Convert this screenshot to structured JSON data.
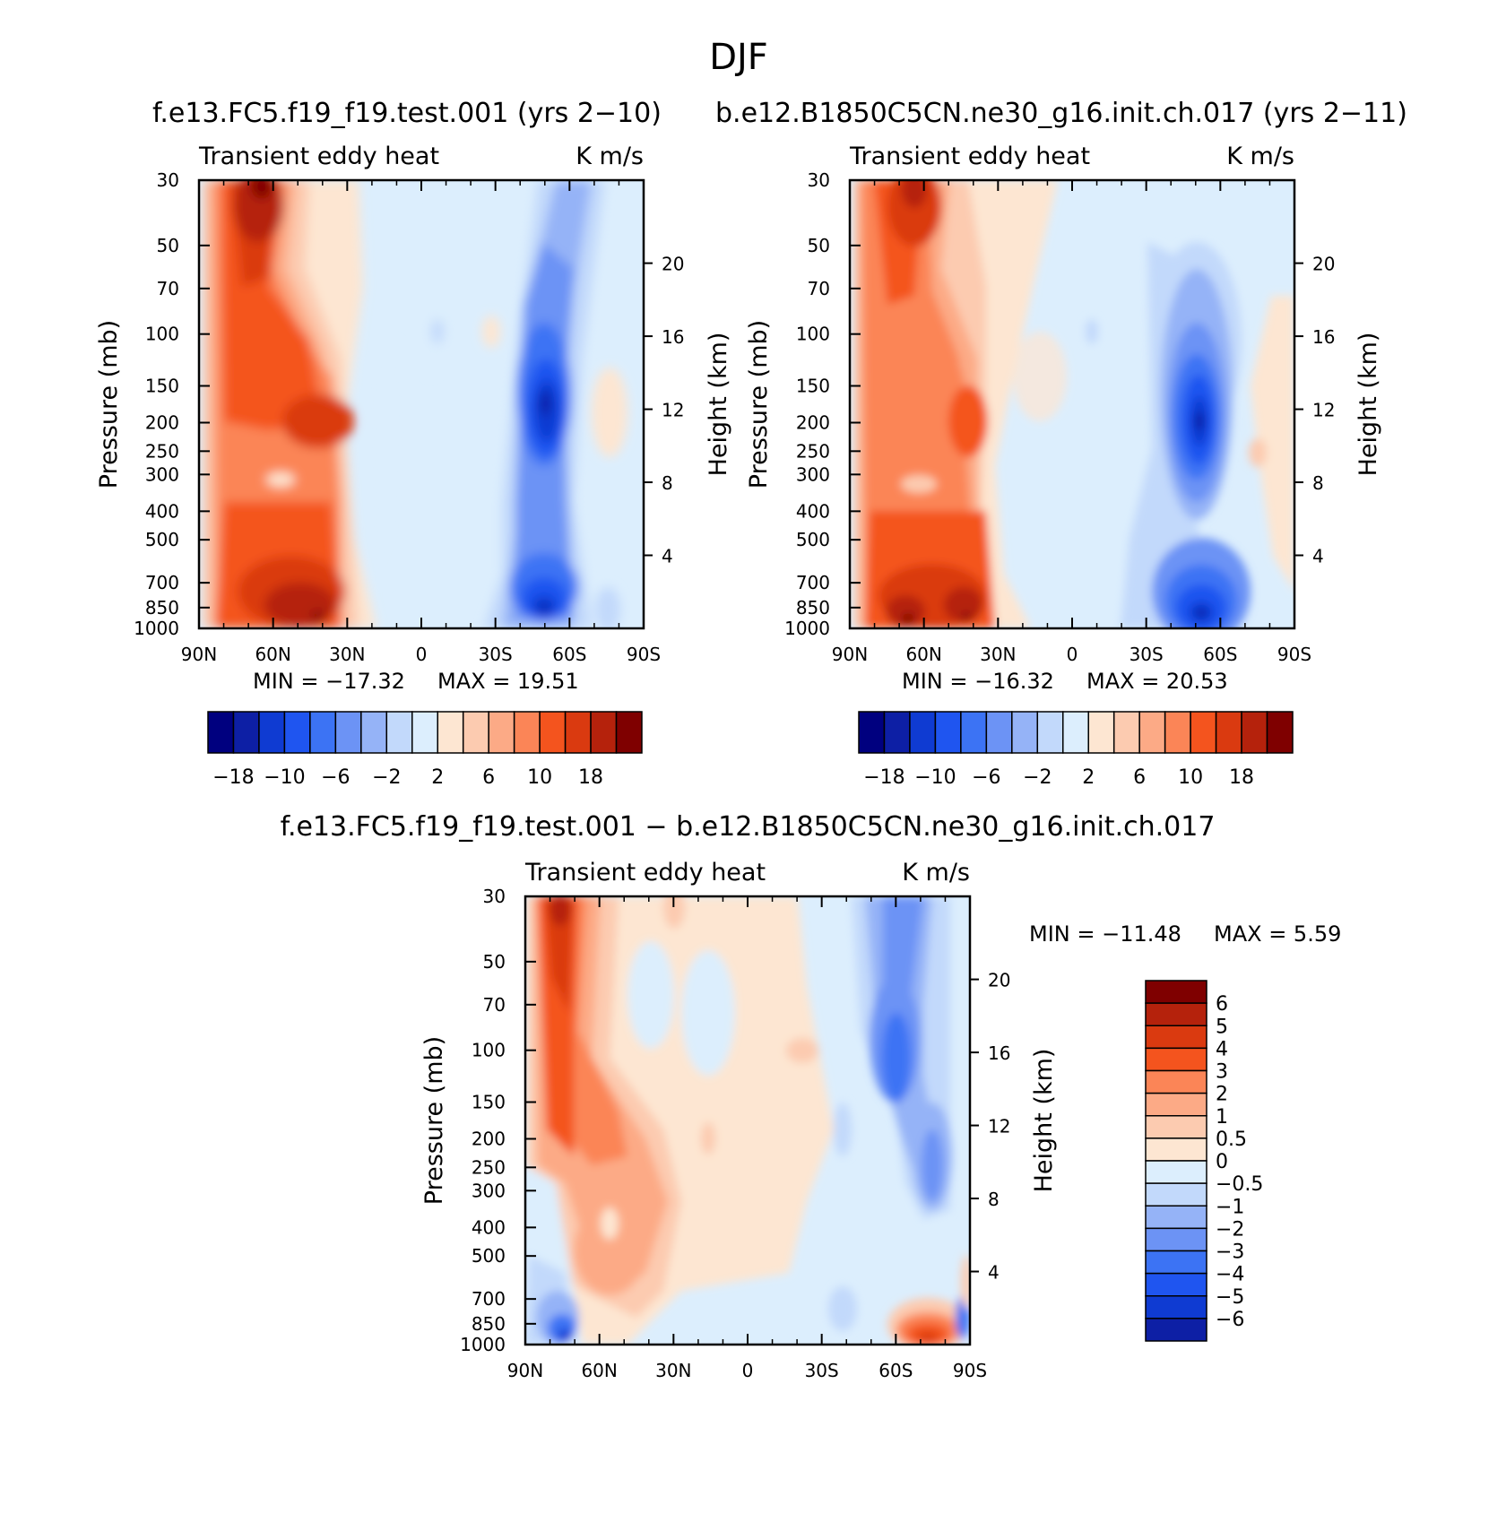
{
  "figure": {
    "title": "DJF",
    "panels_left_title": "f.e13.FC5.f19_f19.test.001 (yrs 2−10)",
    "panels_right_title": "b.e12.B1850C5CN.ne30_g16.init.ch.017 (yrs 2−11)",
    "diff_title": "f.e13.FC5.f19_f19.test.001 − b.e12.B1850C5CN.ne30_g16.init.ch.017"
  },
  "colors": {
    "main_levels": [
      "#00007f",
      "#0d1fa5",
      "#0f3bd2",
      "#1f55f0",
      "#3c73f4",
      "#6c93f5",
      "#95b3f7",
      "#c2d9fb",
      "#dceefd",
      "#fde6d2",
      "#fccbb0",
      "#fcaa86",
      "#fb8557",
      "#f4541e",
      "#da3a10",
      "#b5220c",
      "#7f0000"
    ],
    "diff_levels": [
      "#7f0000",
      "#b5220c",
      "#da3a10",
      "#f4541e",
      "#fb8557",
      "#fcaa86",
      "#fccbb0",
      "#fde6d2",
      "#dceefd",
      "#c2d9fb",
      "#95b3f7",
      "#6c93f5",
      "#3c73f4",
      "#1f55f0",
      "#0f3bd2",
      "#0d1fa5",
      "#00007f"
    ]
  },
  "chart_data": [
    {
      "type": "heatmap",
      "panel": "control",
      "title_left": "Transient eddy heat",
      "title_right": "K m/s",
      "xlabel": "",
      "ylabel": "Pressure (mb)",
      "y2label": "Height (km)",
      "x_ticks": [
        "90N",
        "60N",
        "30N",
        "0",
        "30S",
        "60S",
        "90S"
      ],
      "x_values": [
        90,
        60,
        30,
        0,
        -30,
        -60,
        -90
      ],
      "y_ticks": [
        "30",
        "50",
        "70",
        "100",
        "150",
        "200",
        "250",
        "300",
        "400",
        "500",
        "700",
        "850",
        "1000"
      ],
      "y_values": [
        30,
        50,
        70,
        100,
        150,
        200,
        250,
        300,
        400,
        500,
        700,
        850,
        1000
      ],
      "y2_ticks": [
        "20",
        "16",
        "12",
        "8",
        "4"
      ],
      "y2_values": [
        20,
        16,
        12,
        8,
        4
      ],
      "min_text": "MIN = −17.32",
      "max_text": "MAX = 19.51",
      "min": -17.32,
      "max": 19.51,
      "features": [
        {
          "lat": 65,
          "p": 38,
          "value": 18,
          "kind": "max"
        },
        {
          "lat": 37,
          "p": 200,
          "value": 12,
          "kind": "max"
        },
        {
          "lat": 45,
          "p": 880,
          "value": 19.5,
          "kind": "max"
        },
        {
          "lat": -50,
          "p": 185,
          "value": -17,
          "kind": "min"
        },
        {
          "lat": -50,
          "p": 860,
          "value": -17,
          "kind": "min"
        }
      ],
      "colorbar": {
        "labels": [
          "−18",
          "−10",
          "−6",
          "−2",
          "2",
          "6",
          "10",
          "18"
        ]
      }
    },
    {
      "type": "heatmap",
      "panel": "experiment",
      "title_left": "Transient eddy heat",
      "title_right": "K m/s",
      "xlabel": "",
      "ylabel": "Pressure (mb)",
      "y2label": "Height (km)",
      "x_ticks": [
        "90N",
        "60N",
        "30N",
        "0",
        "30S",
        "60S",
        "90S"
      ],
      "x_values": [
        90,
        60,
        30,
        0,
        -30,
        -60,
        -90
      ],
      "y_ticks": [
        "30",
        "50",
        "70",
        "100",
        "150",
        "200",
        "250",
        "300",
        "400",
        "500",
        "700",
        "850",
        "1000"
      ],
      "y_values": [
        30,
        50,
        70,
        100,
        150,
        200,
        250,
        300,
        400,
        500,
        700,
        850,
        1000
      ],
      "y2_ticks": [
        "20",
        "16",
        "12",
        "8",
        "4"
      ],
      "y2_values": [
        20,
        16,
        12,
        8,
        4
      ],
      "min_text": "MIN = −16.32",
      "max_text": "MAX = 20.53",
      "min": -16.32,
      "max": 20.53,
      "features": [
        {
          "lat": 63,
          "p": 38,
          "value": 16,
          "kind": "max"
        },
        {
          "lat": 38,
          "p": 165,
          "value": 10,
          "kind": "max"
        },
        {
          "lat": 60,
          "p": 870,
          "value": 20.5,
          "kind": "max"
        },
        {
          "lat": 40,
          "p": 860,
          "value": 19,
          "kind": "max"
        },
        {
          "lat": -50,
          "p": 195,
          "value": -16,
          "kind": "min"
        },
        {
          "lat": -50,
          "p": 850,
          "value": -16,
          "kind": "min"
        }
      ],
      "colorbar": {
        "labels": [
          "−18",
          "−10",
          "−6",
          "−2",
          "2",
          "6",
          "10",
          "18"
        ]
      }
    },
    {
      "type": "heatmap",
      "panel": "difference",
      "title_left": "Transient eddy heat",
      "title_right": "K m/s",
      "xlabel": "",
      "ylabel": "Pressure (mb)",
      "y2label": "Height (km)",
      "x_ticks": [
        "90N",
        "60N",
        "30N",
        "0",
        "30S",
        "60S",
        "90S"
      ],
      "x_values": [
        90,
        60,
        30,
        0,
        -30,
        -60,
        -90
      ],
      "y_ticks": [
        "30",
        "50",
        "70",
        "100",
        "150",
        "200",
        "250",
        "300",
        "400",
        "500",
        "700",
        "850",
        "1000"
      ],
      "y_values": [
        30,
        50,
        70,
        100,
        150,
        200,
        250,
        300,
        400,
        500,
        700,
        850,
        1000
      ],
      "y2_ticks": [
        "20",
        "16",
        "12",
        "8",
        "4"
      ],
      "y2_values": [
        20,
        16,
        12,
        8,
        4
      ],
      "min_text": "MIN = −11.48",
      "max_text": "MAX = 5.59",
      "min": -11.48,
      "max": 5.59,
      "features": [
        {
          "lat": 75,
          "p": 45,
          "value": 5.5,
          "kind": "max"
        },
        {
          "lat": 63,
          "p": 180,
          "value": 4,
          "kind": "max"
        },
        {
          "lat": -65,
          "p": 940,
          "value": 5,
          "kind": "max"
        },
        {
          "lat": -57,
          "p": 80,
          "value": -4,
          "kind": "min"
        },
        {
          "lat": 80,
          "p": 950,
          "value": -5,
          "kind": "min"
        }
      ],
      "colorbar": {
        "labels": [
          "6",
          "5",
          "4",
          "3",
          "2",
          "1",
          "0.5",
          "0",
          "−0.5",
          "−1",
          "−2",
          "−3",
          "−4",
          "−5",
          "−6"
        ]
      }
    }
  ]
}
